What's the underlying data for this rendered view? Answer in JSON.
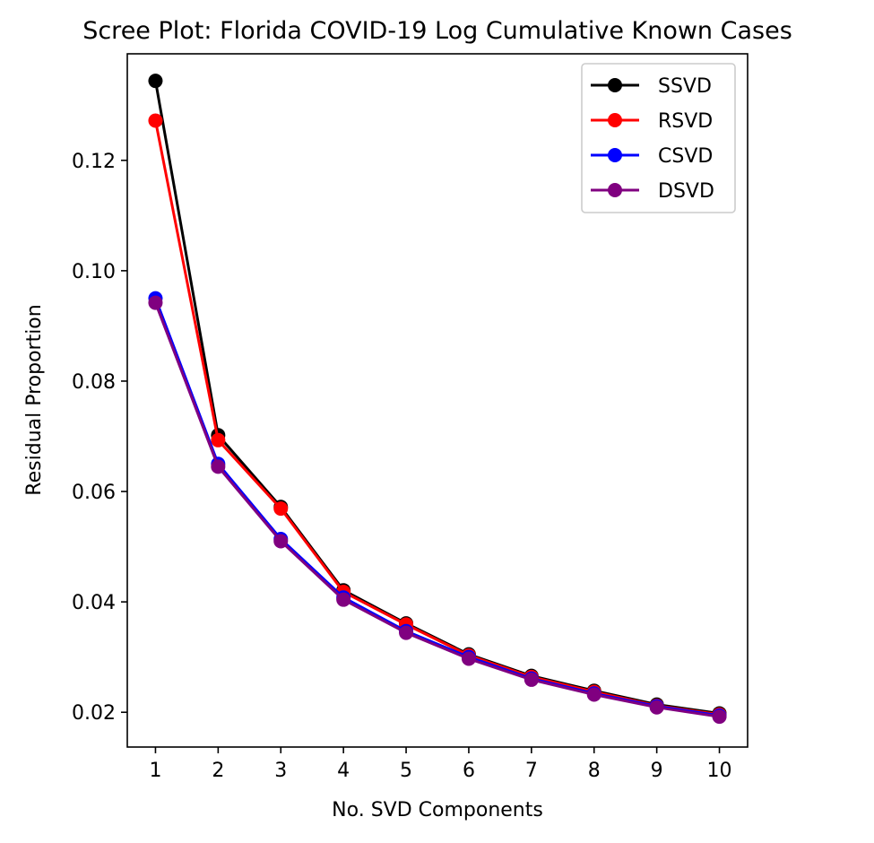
{
  "chart_data": {
    "type": "line",
    "title": "Scree Plot: Florida COVID-19 Log Cumulative Known Cases",
    "xlabel": "No. SVD Components",
    "ylabel": "Residual Proportion",
    "x": [
      1,
      2,
      3,
      4,
      5,
      6,
      7,
      8,
      9,
      10
    ],
    "xlim": [
      0.55,
      10.45
    ],
    "ylim": [
      0.0137,
      0.1393
    ],
    "xticks": [
      1,
      2,
      3,
      4,
      5,
      6,
      7,
      8,
      9,
      10
    ],
    "yticks": [
      0.02,
      0.04,
      0.06,
      0.08,
      0.1,
      0.12
    ],
    "ytick_labels": [
      "0.02",
      "0.04",
      "0.06",
      "0.08",
      "0.10",
      "0.12"
    ],
    "grid": false,
    "legend_position": "top-right",
    "marker": "circle",
    "series": [
      {
        "name": "SSVD",
        "color": "#000000",
        "values": [
          0.1344,
          0.0702,
          0.0572,
          0.0421,
          0.0361,
          0.0305,
          0.0266,
          0.0239,
          0.0214,
          0.0198
        ]
      },
      {
        "name": "RSVD",
        "color": "#ff0000",
        "values": [
          0.1272,
          0.0693,
          0.0569,
          0.0418,
          0.0359,
          0.0303,
          0.0264,
          0.0237,
          0.0212,
          0.0196
        ]
      },
      {
        "name": "CSVD",
        "color": "#0000ff",
        "values": [
          0.095,
          0.065,
          0.0514,
          0.0408,
          0.0347,
          0.03,
          0.0261,
          0.0234,
          0.0211,
          0.0194
        ]
      },
      {
        "name": "DSVD",
        "color": "#800080",
        "values": [
          0.0942,
          0.0645,
          0.051,
          0.0404,
          0.0344,
          0.0297,
          0.0259,
          0.0232,
          0.0209,
          0.0192
        ]
      }
    ]
  }
}
